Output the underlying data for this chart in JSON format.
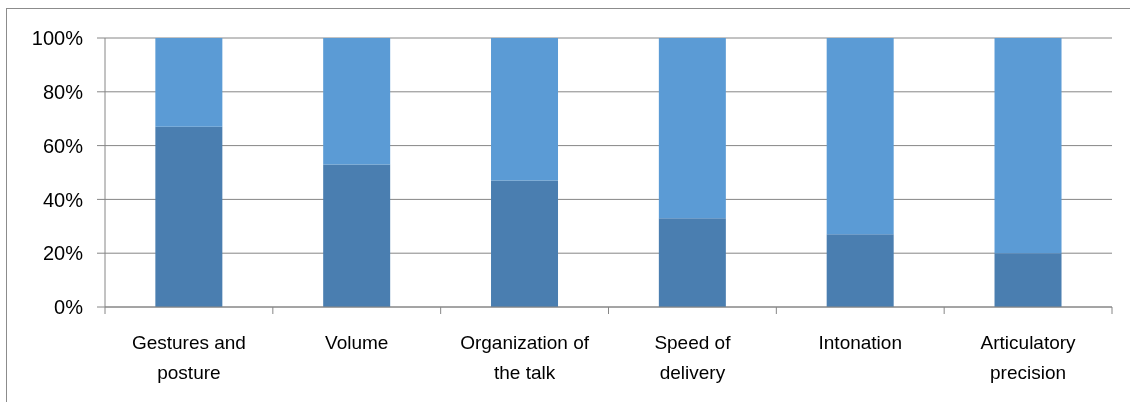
{
  "chart_data": {
    "type": "bar",
    "stacked": true,
    "categories": [
      "Gestures and posture",
      "Volume",
      "Organization of the talk",
      "Speed of delivery",
      "Intonation",
      "Articulatory precision"
    ],
    "series": [
      {
        "color": "#4a7eb0",
        "values": [
          67,
          53,
          47,
          33,
          27,
          20
        ]
      },
      {
        "color": "#5b9bd5",
        "values": [
          33,
          47,
          53,
          67,
          73,
          80
        ]
      }
    ],
    "ylim": [
      0,
      100
    ],
    "yticks": [
      {
        "value": 0,
        "label": "0%"
      },
      {
        "value": 20,
        "label": "20%"
      },
      {
        "value": 40,
        "label": "40%"
      },
      {
        "value": 60,
        "label": "60%"
      },
      {
        "value": 80,
        "label": "80%"
      },
      {
        "value": 100,
        "label": "100%"
      }
    ],
    "grid": "y"
  }
}
